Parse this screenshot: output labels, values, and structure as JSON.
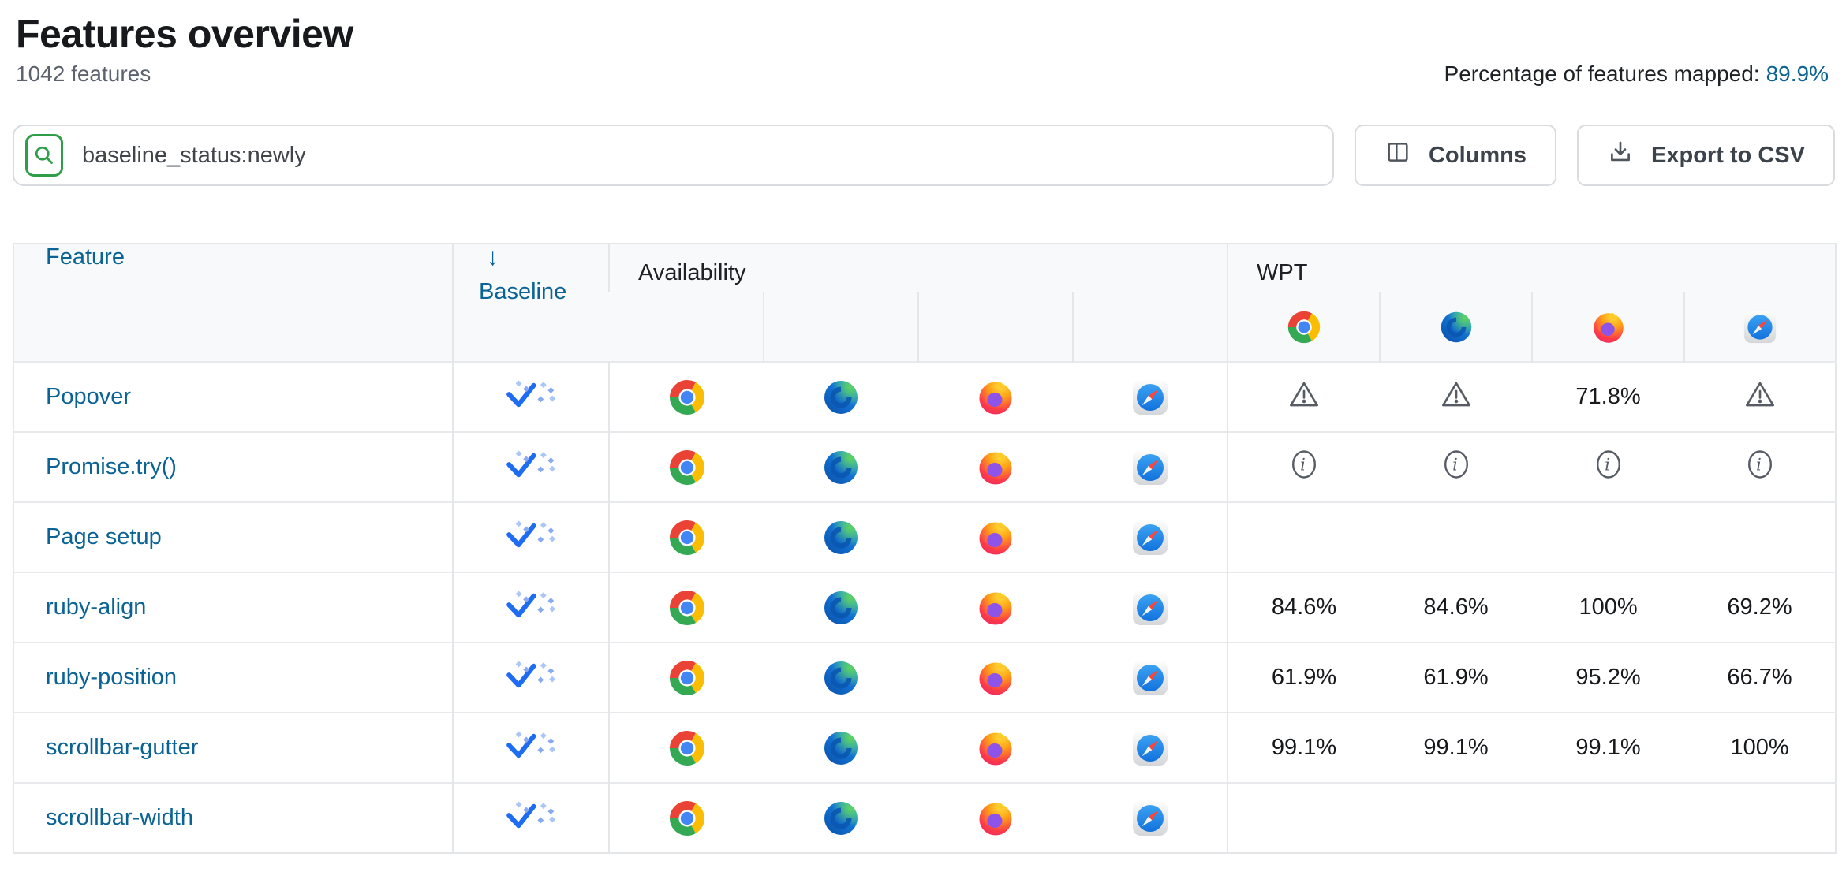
{
  "page": {
    "title": "Features overview",
    "subtitle": "1042 features",
    "mapped_label": "Percentage of features mapped:",
    "mapped_value": "89.9%"
  },
  "toolbar": {
    "search_value": "baseline_status:newly",
    "columns_label": "Columns",
    "export_label": "Export to CSV"
  },
  "table": {
    "headers": {
      "feature": "Feature",
      "sort_arrow": "↓",
      "baseline": "Baseline",
      "availability": "Availability",
      "wpt": "WPT"
    },
    "browsers": [
      "chrome",
      "edge",
      "firefox",
      "safari"
    ],
    "rows": [
      {
        "feature": "Popover",
        "baseline": "newly",
        "availability": [
          "chrome",
          "edge",
          "firefox",
          "safari"
        ],
        "wpt": [
          "warning",
          "warning",
          "71.8%",
          "warning"
        ]
      },
      {
        "feature": "Promise.try()",
        "baseline": "newly",
        "availability": [
          "chrome",
          "edge",
          "firefox",
          "safari"
        ],
        "wpt": [
          "info",
          "info",
          "info",
          "info"
        ]
      },
      {
        "feature": "Page setup",
        "baseline": "newly",
        "availability": [
          "chrome",
          "edge",
          "firefox",
          "safari"
        ],
        "wpt": [
          "",
          "",
          "",
          ""
        ]
      },
      {
        "feature": "ruby-align",
        "baseline": "newly",
        "availability": [
          "chrome",
          "edge",
          "firefox",
          "safari"
        ],
        "wpt": [
          "84.6%",
          "84.6%",
          "100%",
          "69.2%"
        ]
      },
      {
        "feature": "ruby-position",
        "baseline": "newly",
        "availability": [
          "chrome",
          "edge",
          "firefox",
          "safari"
        ],
        "wpt": [
          "61.9%",
          "61.9%",
          "95.2%",
          "66.7%"
        ]
      },
      {
        "feature": "scrollbar-gutter",
        "baseline": "newly",
        "availability": [
          "chrome",
          "edge",
          "firefox",
          "safari"
        ],
        "wpt": [
          "99.1%",
          "99.1%",
          "99.1%",
          "100%"
        ]
      },
      {
        "feature": "scrollbar-width",
        "baseline": "newly",
        "availability": [
          "chrome",
          "edge",
          "firefox",
          "safari"
        ],
        "wpt": [
          "",
          "",
          "",
          ""
        ]
      }
    ]
  },
  "colors": {
    "link_blue": "#0a6394",
    "search_icon_green": "#2f9e49",
    "baseline_check_blue": "#1d6cf2",
    "baseline_dot_light": "#aac7f8",
    "baseline_dot_mid": "#88aaf1",
    "header_bg": "#f8f9fa",
    "border": "#e4e6ea",
    "status_icon_gray": "#565b64"
  }
}
